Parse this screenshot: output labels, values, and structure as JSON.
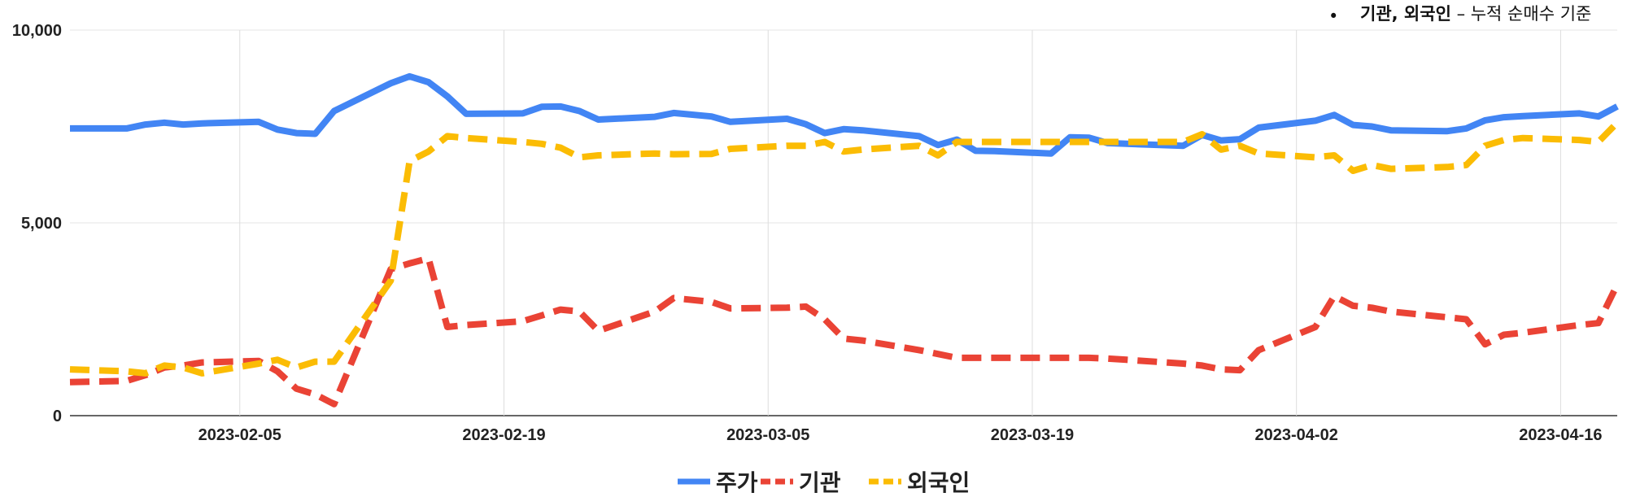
{
  "note": {
    "bullet": "•",
    "bold": "기관, 외국인",
    "rest": " – 누적 순매수 기준"
  },
  "chart_data": {
    "type": "line",
    "title": "",
    "xlabel": "",
    "ylabel": "",
    "ylim": [
      0,
      10000
    ],
    "yticks": [
      0,
      5000,
      10000
    ],
    "ytick_labels": [
      "0",
      "5,000",
      "10,000"
    ],
    "xlim": [
      "2023-01-27",
      "2023-04-19"
    ],
    "xticks": [
      "2023-02-05",
      "2023-02-19",
      "2023-03-05",
      "2023-03-19",
      "2023-04-02",
      "2023-04-16"
    ],
    "grid": "vertical gridlines at x ticks, horizontal gridlines at y ticks",
    "legend": "bottom-center",
    "dates": [
      "2023-01-27",
      "2023-01-30",
      "2023-01-31",
      "2023-02-01",
      "2023-02-02",
      "2023-02-03",
      "2023-02-06",
      "2023-02-07",
      "2023-02-08",
      "2023-02-09",
      "2023-02-10",
      "2023-02-13",
      "2023-02-14",
      "2023-02-15",
      "2023-02-16",
      "2023-02-17",
      "2023-02-20",
      "2023-02-21",
      "2023-02-22",
      "2023-02-23",
      "2023-02-24",
      "2023-02-27",
      "2023-02-28",
      "2023-03-02",
      "2023-03-03",
      "2023-03-06",
      "2023-03-07",
      "2023-03-08",
      "2023-03-09",
      "2023-03-10",
      "2023-03-13",
      "2023-03-14",
      "2023-03-15",
      "2023-03-16",
      "2023-03-17",
      "2023-03-20",
      "2023-03-21",
      "2023-03-22",
      "2023-03-23",
      "2023-03-24",
      "2023-03-27",
      "2023-03-28",
      "2023-03-29",
      "2023-03-30",
      "2023-03-31",
      "2023-04-03",
      "2023-04-04",
      "2023-04-05",
      "2023-04-06",
      "2023-04-07",
      "2023-04-10",
      "2023-04-11",
      "2023-04-12",
      "2023-04-13",
      "2023-04-14",
      "2023-04-17",
      "2023-04-18",
      "2023-04-19"
    ],
    "series": [
      {
        "name": "주가",
        "color": "#4285f4",
        "dash": "solid",
        "values": [
          7450,
          7450,
          7550,
          7600,
          7550,
          7580,
          7620,
          7420,
          7330,
          7310,
          7900,
          8620,
          8800,
          8650,
          8280,
          7830,
          7840,
          8010,
          8020,
          7900,
          7680,
          7750,
          7850,
          7760,
          7620,
          7700,
          7560,
          7330,
          7430,
          7400,
          7250,
          7020,
          7160,
          6870,
          6860,
          6800,
          7220,
          7210,
          7070,
          7050,
          7000,
          7280,
          7140,
          7170,
          7470,
          7650,
          7800,
          7540,
          7500,
          7400,
          7380,
          7450,
          7660,
          7740,
          7770,
          7840,
          7760,
          8020
        ]
      },
      {
        "name": "기관",
        "color": "#ea4335",
        "dash": "dashed",
        "values": [
          870,
          900,
          1050,
          1250,
          1300,
          1380,
          1420,
          1150,
          700,
          550,
          300,
          3800,
          3950,
          4080,
          2300,
          2350,
          2450,
          2600,
          2750,
          2700,
          2200,
          2700,
          3050,
          2950,
          2780,
          2800,
          2830,
          2500,
          2000,
          1950,
          1700,
          1600,
          1500,
          1500,
          1500,
          1500,
          1500,
          1500,
          1480,
          1450,
          1350,
          1300,
          1200,
          1180,
          1700,
          2300,
          3100,
          2850,
          2800,
          2700,
          2550,
          2500,
          1850,
          2100,
          2150,
          2350,
          2400,
          3400
        ]
      },
      {
        "name": "외국인",
        "color": "#fbbc04",
        "dash": "dashed",
        "values": [
          1200,
          1150,
          1100,
          1300,
          1250,
          1100,
          1350,
          1450,
          1250,
          1400,
          1400,
          3500,
          6600,
          6850,
          7250,
          7200,
          7100,
          7050,
          6950,
          6700,
          6750,
          6800,
          6780,
          6790,
          6920,
          7000,
          7000,
          7100,
          6850,
          6900,
          7000,
          6750,
          7100,
          7100,
          7100,
          7100,
          7100,
          7100,
          7100,
          7100,
          7100,
          7300,
          6900,
          7000,
          6800,
          6700,
          6750,
          6350,
          6500,
          6400,
          6450,
          6500,
          7000,
          7150,
          7200,
          7150,
          7100,
          7600
        ]
      }
    ]
  }
}
